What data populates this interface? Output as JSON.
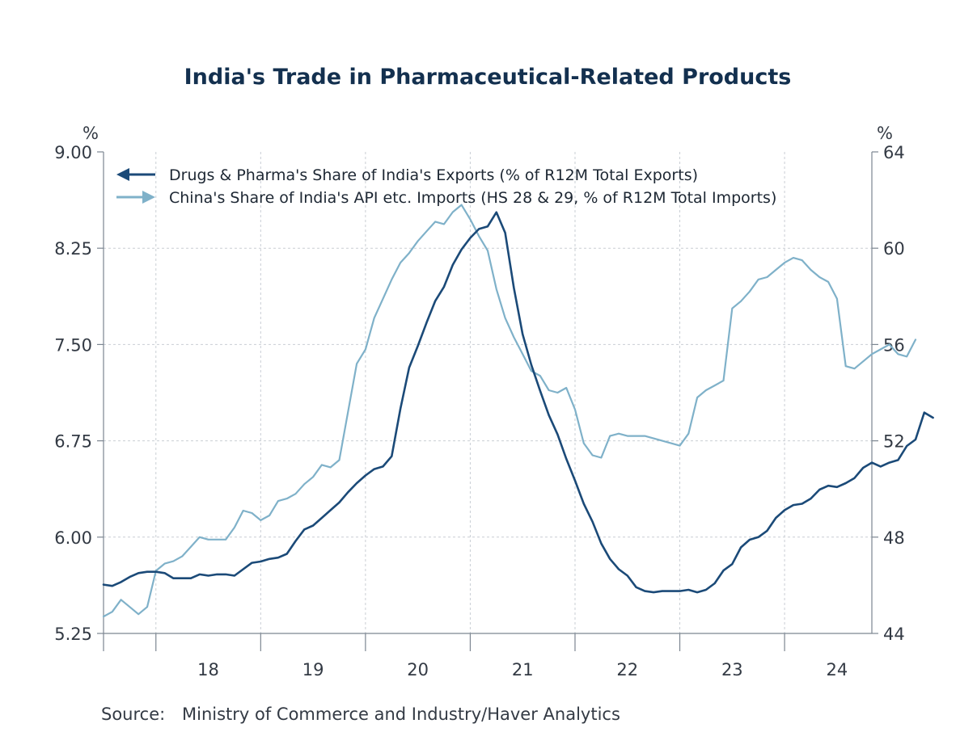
{
  "chart_data": {
    "type": "line",
    "title": "India's Trade in Pharmaceutical-Related Products",
    "left_unit": "%",
    "right_unit": "%",
    "source_label": "Source:",
    "source_text": "Ministry of Commerce and Industry/Haver Analytics",
    "x_tick_labels": [
      "18",
      "19",
      "20",
      "21",
      "22",
      "23",
      "24"
    ],
    "x_range": [
      2017.5,
      2024.833
    ],
    "left_axis": {
      "range": [
        5.25,
        9.0
      ],
      "ticks": [
        "9.00",
        "8.25",
        "7.50",
        "6.75",
        "6.00",
        "5.25"
      ]
    },
    "right_axis": {
      "range": [
        44,
        64
      ],
      "ticks": [
        "64",
        "60",
        "56",
        "52",
        "48",
        "44"
      ]
    },
    "grid": true,
    "legend_position": "top-left",
    "series": [
      {
        "name": "Drugs & Pharma's Share of India's Exports (% of R12M Total Exports)",
        "axis": "left",
        "color": "#1b4a78",
        "x_start": 2017.5,
        "x_step": 0.0833333,
        "values": [
          5.63,
          5.62,
          5.65,
          5.69,
          5.72,
          5.73,
          5.73,
          5.72,
          5.68,
          5.68,
          5.68,
          5.71,
          5.7,
          5.71,
          5.71,
          5.7,
          5.75,
          5.8,
          5.81,
          5.83,
          5.84,
          5.87,
          5.97,
          6.06,
          6.09,
          6.15,
          6.21,
          6.27,
          6.35,
          6.42,
          6.48,
          6.53,
          6.55,
          6.63,
          7.0,
          7.32,
          7.49,
          7.67,
          7.84,
          7.95,
          8.12,
          8.24,
          8.33,
          8.4,
          8.42,
          8.53,
          8.37,
          7.94,
          7.58,
          7.34,
          7.14,
          6.95,
          6.8,
          6.61,
          6.44,
          6.26,
          6.12,
          5.95,
          5.83,
          5.75,
          5.7,
          5.61,
          5.58,
          5.57,
          5.58,
          5.58,
          5.58,
          5.59,
          5.57,
          5.59,
          5.64,
          5.74,
          5.79,
          5.92,
          5.98,
          6.0,
          6.05,
          6.15,
          6.21,
          6.25,
          6.26,
          6.3,
          6.37,
          6.4,
          6.39,
          6.42,
          6.46,
          6.54,
          6.58,
          6.55,
          6.58,
          6.6,
          6.71,
          6.76,
          6.97,
          6.93
        ]
      },
      {
        "name": "China's Share of India's API etc. Imports (HS 28 & 29, % of R12M Total Imports)",
        "axis": "right",
        "color": "#7fb1c9",
        "x_start": 2017.5,
        "x_step": 0.0833333,
        "values": [
          44.7,
          44.9,
          45.4,
          45.1,
          44.8,
          45.1,
          46.6,
          46.9,
          47.0,
          47.2,
          47.6,
          48.0,
          47.9,
          47.9,
          47.9,
          48.4,
          49.1,
          49.0,
          48.7,
          48.9,
          49.5,
          49.6,
          49.8,
          50.2,
          50.5,
          51.0,
          50.9,
          51.2,
          53.2,
          55.2,
          55.8,
          57.1,
          57.9,
          58.7,
          59.4,
          59.8,
          60.3,
          60.7,
          61.1,
          61.0,
          61.5,
          61.8,
          61.2,
          60.5,
          59.9,
          58.3,
          57.1,
          56.3,
          55.6,
          54.9,
          54.7,
          54.1,
          54.0,
          54.2,
          53.3,
          51.9,
          51.4,
          51.3,
          52.2,
          52.3,
          52.2,
          52.2,
          52.2,
          52.1,
          52.0,
          51.9,
          51.8,
          52.3,
          53.8,
          54.1,
          54.3,
          54.5,
          57.5,
          57.8,
          58.2,
          58.7,
          58.8,
          59.1,
          59.4,
          59.6,
          59.5,
          59.1,
          58.8,
          58.6,
          57.9,
          55.1,
          55.0,
          55.3,
          55.6,
          55.8,
          56.0,
          55.6,
          55.5,
          56.2
        ]
      }
    ]
  }
}
